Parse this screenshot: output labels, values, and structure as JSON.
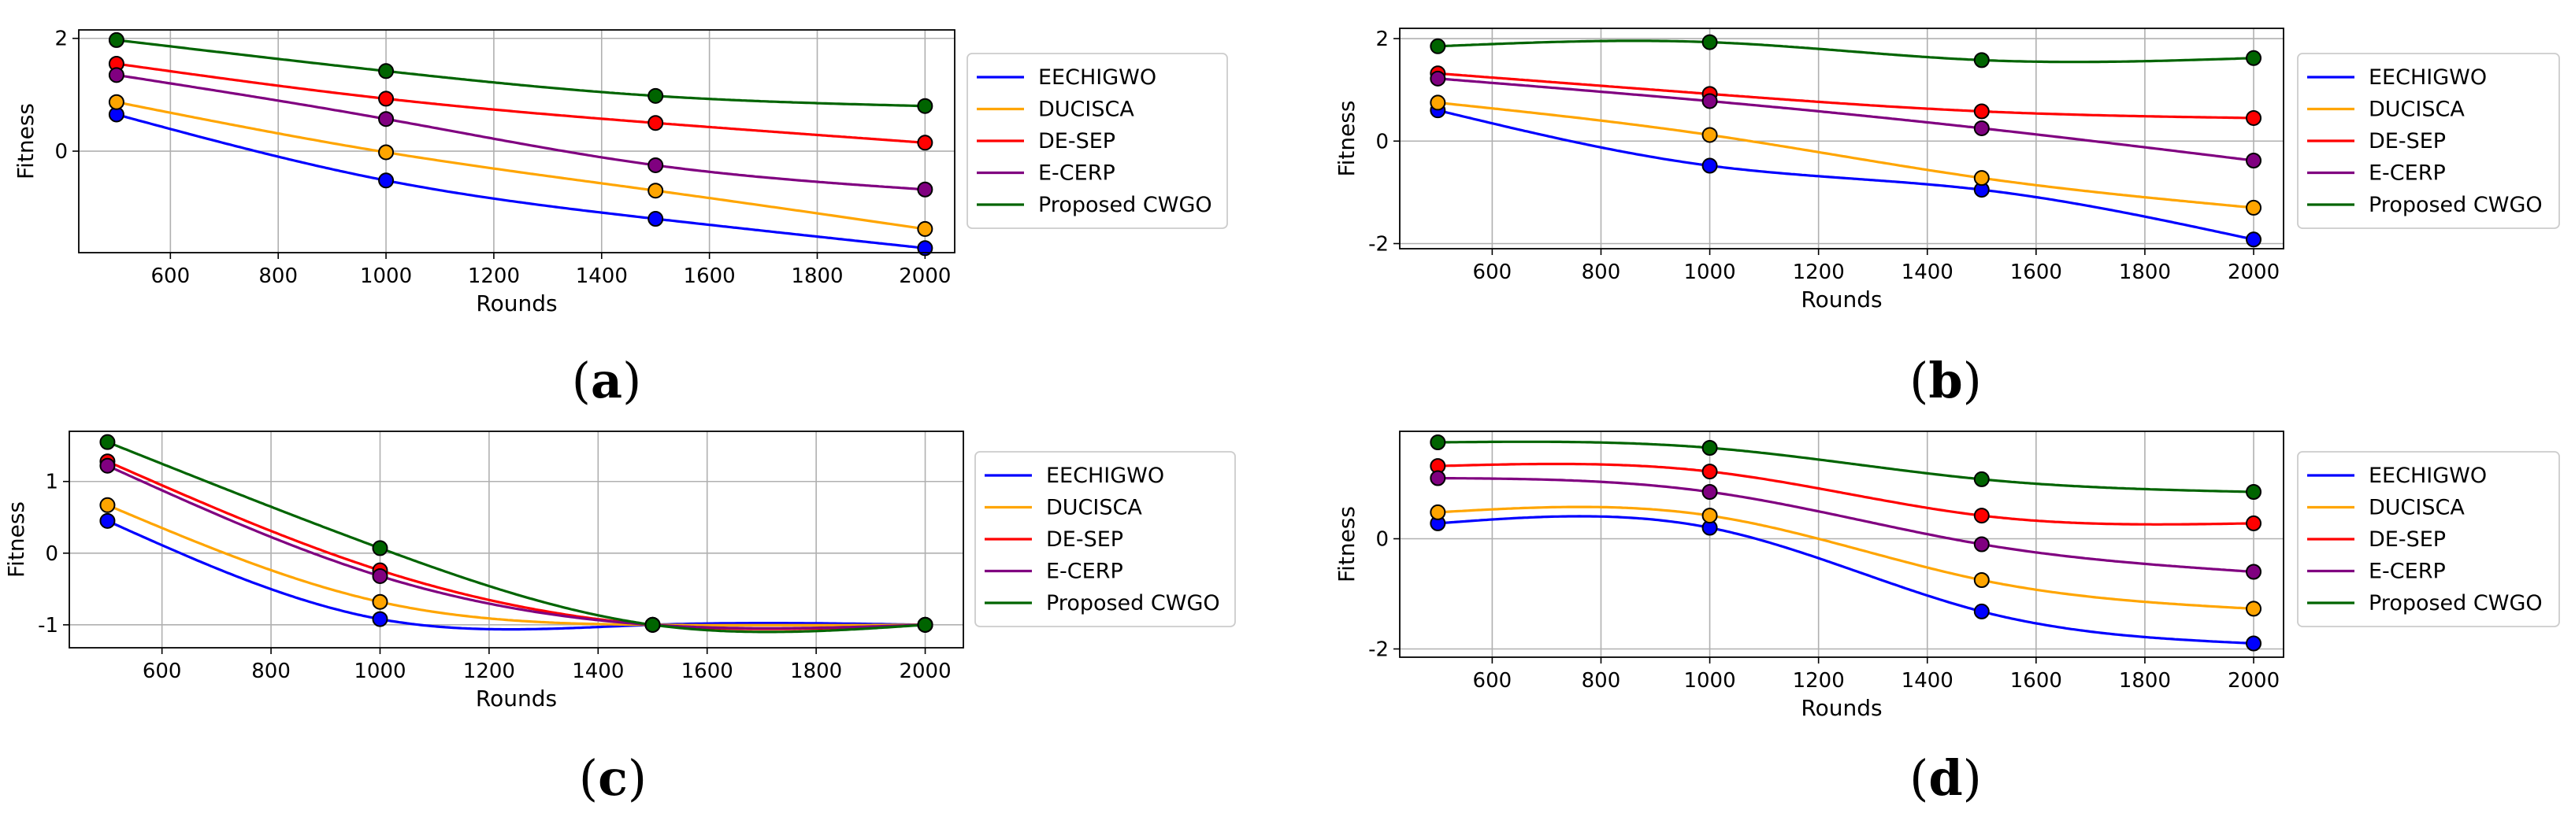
{
  "chart_data": [
    {
      "type": "line",
      "caption_open": "(",
      "caption_letter": "a",
      "caption_close": ")",
      "xlabel": "Rounds",
      "ylabel": "Fitness",
      "xlim": [
        430,
        2055
      ],
      "ylim": [
        -1.8,
        2.15
      ],
      "xticks": [
        600,
        800,
        1000,
        1200,
        1400,
        1600,
        1800,
        2000
      ],
      "yticks": [
        0,
        2
      ],
      "x": [
        500,
        1000,
        1500,
        2000
      ],
      "series": [
        {
          "name": "EECHIGWO",
          "color": "#0000ff",
          "values": [
            0.65,
            -0.52,
            -1.2,
            -1.72
          ]
        },
        {
          "name": "DUCISCA",
          "color": "#ffa500",
          "values": [
            0.87,
            -0.02,
            -0.7,
            -1.38
          ]
        },
        {
          "name": "DE-SEP",
          "color": "#ff0000",
          "values": [
            1.55,
            0.93,
            0.5,
            0.15
          ]
        },
        {
          "name": "E-CERP",
          "color": "#800080",
          "values": [
            1.35,
            0.57,
            -0.25,
            -0.68
          ]
        },
        {
          "name": "Proposed CWGO",
          "color": "#006400",
          "values": [
            1.97,
            1.42,
            0.98,
            0.8
          ]
        }
      ]
    },
    {
      "type": "line",
      "caption_open": "(",
      "caption_letter": "b",
      "caption_close": ")",
      "xlabel": "Rounds",
      "ylabel": "Fitness",
      "xlim": [
        430,
        2055
      ],
      "ylim": [
        -2.1,
        2.2
      ],
      "xticks": [
        600,
        800,
        1000,
        1200,
        1400,
        1600,
        1800,
        2000
      ],
      "yticks": [
        -2,
        0,
        2
      ],
      "x": [
        500,
        1000,
        1500,
        2000
      ],
      "series": [
        {
          "name": "EECHIGWO",
          "color": "#0000ff",
          "values": [
            0.6,
            -0.48,
            -0.95,
            -1.92
          ]
        },
        {
          "name": "DUCISCA",
          "color": "#ffa500",
          "values": [
            0.75,
            0.12,
            -0.72,
            -1.3
          ]
        },
        {
          "name": "DE-SEP",
          "color": "#ff0000",
          "values": [
            1.32,
            0.92,
            0.58,
            0.45
          ]
        },
        {
          "name": "E-CERP",
          "color": "#800080",
          "values": [
            1.22,
            0.78,
            0.25,
            -0.38
          ]
        },
        {
          "name": "Proposed CWGO",
          "color": "#006400",
          "values": [
            1.85,
            1.93,
            1.58,
            1.62
          ]
        }
      ]
    },
    {
      "type": "line",
      "caption_open": "(",
      "caption_letter": "c",
      "caption_close": ")",
      "xlabel": "Rounds",
      "ylabel": "Fitness",
      "xlim": [
        430,
        2070
      ],
      "ylim": [
        -1.32,
        1.7
      ],
      "xticks": [
        600,
        800,
        1000,
        1200,
        1400,
        1600,
        1800,
        2000
      ],
      "yticks": [
        -1,
        0,
        1
      ],
      "x": [
        500,
        1000,
        1500,
        2000
      ],
      "series": [
        {
          "name": "EECHIGWO",
          "color": "#0000ff",
          "values": [
            0.45,
            -0.92,
            -1.0,
            -1.0
          ]
        },
        {
          "name": "DUCISCA",
          "color": "#ffa500",
          "values": [
            0.67,
            -0.68,
            -1.0,
            -1.0
          ]
        },
        {
          "name": "DE-SEP",
          "color": "#ff0000",
          "values": [
            1.28,
            -0.24,
            -1.0,
            -1.0
          ]
        },
        {
          "name": "E-CERP",
          "color": "#800080",
          "values": [
            1.22,
            -0.32,
            -1.0,
            -1.0
          ]
        },
        {
          "name": "Proposed CWGO",
          "color": "#006400",
          "values": [
            1.55,
            0.07,
            -1.0,
            -1.0
          ]
        }
      ]
    },
    {
      "type": "line",
      "caption_open": "(",
      "caption_letter": "d",
      "caption_close": ")",
      "xlabel": "Rounds",
      "ylabel": "Fitness",
      "xlim": [
        430,
        2055
      ],
      "ylim": [
        -2.15,
        1.95
      ],
      "xticks": [
        600,
        800,
        1000,
        1200,
        1400,
        1600,
        1800,
        2000
      ],
      "yticks": [
        -2,
        0
      ],
      "x": [
        500,
        1000,
        1500,
        2000
      ],
      "series": [
        {
          "name": "EECHIGWO",
          "color": "#0000ff",
          "values": [
            0.28,
            0.2,
            -1.32,
            -1.9
          ]
        },
        {
          "name": "DUCISCA",
          "color": "#ffa500",
          "values": [
            0.48,
            0.42,
            -0.75,
            -1.27
          ]
        },
        {
          "name": "DE-SEP",
          "color": "#ff0000",
          "values": [
            1.32,
            1.22,
            0.42,
            0.28
          ]
        },
        {
          "name": "E-CERP",
          "color": "#800080",
          "values": [
            1.1,
            0.85,
            -0.1,
            -0.6
          ]
        },
        {
          "name": "Proposed CWGO",
          "color": "#006400",
          "values": [
            1.75,
            1.65,
            1.08,
            0.85
          ]
        }
      ]
    }
  ]
}
